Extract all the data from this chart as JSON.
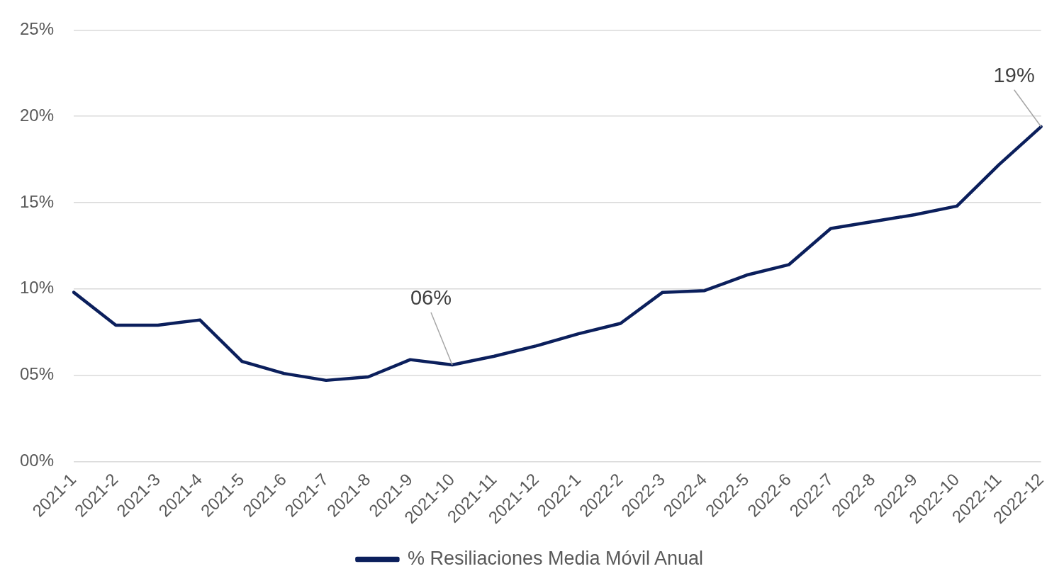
{
  "chart_data": {
    "type": "line",
    "categories": [
      "2021-1",
      "2021-2",
      "2021-3",
      "2021-4",
      "2021-5",
      "2021-6",
      "2021-7",
      "2021-8",
      "2021-9",
      "2021-10",
      "2021-11",
      "2021-12",
      "2022-1",
      "2022-2",
      "2022-3",
      "2022-4",
      "2022-5",
      "2022-6",
      "2022-7",
      "2022-8",
      "2022-9",
      "2022-10",
      "2022-11",
      "2022-12"
    ],
    "series": [
      {
        "name": "% Resiliaciones Media Móvil Anual",
        "color": "#0b1f5c",
        "values": [
          9.8,
          7.9,
          7.9,
          8.2,
          5.8,
          5.1,
          4.7,
          4.9,
          5.9,
          5.6,
          6.1,
          6.7,
          7.4,
          8.0,
          9.8,
          9.9,
          10.8,
          11.4,
          13.5,
          13.9,
          14.3,
          14.8,
          17.2,
          19.4
        ]
      }
    ],
    "ylim": [
      0,
      25
    ],
    "yticks": [
      {
        "value": 0,
        "label": "00%"
      },
      {
        "value": 5,
        "label": "05%"
      },
      {
        "value": 10,
        "label": "10%"
      },
      {
        "value": 15,
        "label": "15%"
      },
      {
        "value": 20,
        "label": "20%"
      },
      {
        "value": 25,
        "label": "25%"
      }
    ],
    "annotations": [
      {
        "text": "06%",
        "x": "2021-10",
        "y": 5.6
      },
      {
        "text": "19%",
        "x": "2022-12",
        "y": 19.4
      }
    ],
    "grid": "y",
    "legend": "bottom",
    "marker": "none",
    "line_style": "solid"
  }
}
